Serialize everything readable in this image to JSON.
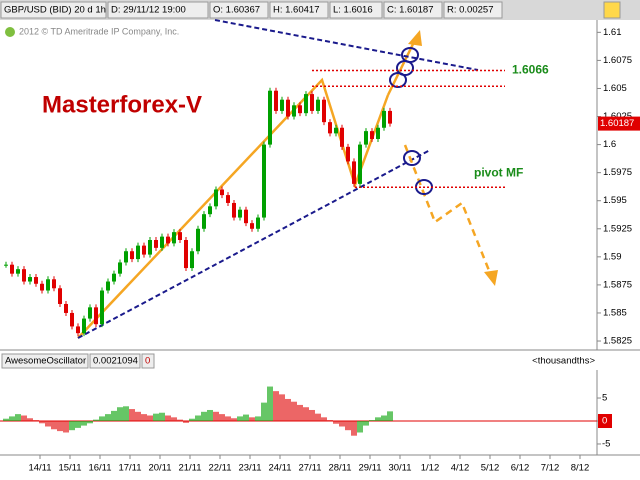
{
  "header": {
    "symbol": "GBP/USD (BID) 20 d 1h",
    "date": "D: 29/11/12 19:00",
    "open": "O: 1.60367",
    "high": "H: 1.60417",
    "low": "L: 1.6016",
    "close": "C: 1.60187",
    "range": "R: 0.00257",
    "copyright": "2012 © TD Ameritrade IP Company, Inc."
  },
  "chart_data": [
    {
      "type": "candlestick",
      "title": "Masterforex-V",
      "values": [
        1.5893,
        1.5885,
        1.5889,
        1.5878,
        1.5882,
        1.5876,
        1.587,
        1.588,
        1.5872,
        1.5858,
        1.585,
        1.5838,
        1.5832,
        1.5845,
        1.5855,
        1.584,
        1.587,
        1.5878,
        1.5885,
        1.5895,
        1.5905,
        1.5898,
        1.591,
        1.5902,
        1.5915,
        1.5908,
        1.5918,
        1.5912,
        1.5922,
        1.5915,
        1.589,
        1.5905,
        1.5925,
        1.5938,
        1.5945,
        1.596,
        1.5955,
        1.5948,
        1.5935,
        1.5942,
        1.593,
        1.5925,
        1.5935,
        1.6,
        1.6048,
        1.603,
        1.604,
        1.6025,
        1.6035,
        1.6028,
        1.6045,
        1.603,
        1.604,
        1.602,
        1.601,
        1.6015,
        1.5998,
        1.5985,
        1.5965,
        1.6,
        1.6012,
        1.6005,
        1.6015,
        1.603,
        1.60187
      ],
      "up_color": "#00a000",
      "down_color": "#e00000",
      "ylim": [
        1.5817,
        1.6111
      ],
      "yticks": [
        1.5825,
        1.585,
        1.5875,
        1.59,
        1.5925,
        1.595,
        1.5975,
        1.6,
        1.6025,
        1.605,
        1.6075,
        1.61
      ],
      "last_price": 1.60187,
      "levels": [
        1.6066,
        1.6052,
        1.5962
      ],
      "pivot_label": "pivot MF"
    },
    {
      "type": "bar",
      "name": "AwesomeOscillator",
      "last_value": 0.0021094,
      "param": 0,
      "units": "<thousandths>",
      "values": [
        0.5,
        1.0,
        1.5,
        1.2,
        0.6,
        0.2,
        -0.5,
        -1.2,
        -1.8,
        -2.2,
        -2.5,
        -2.0,
        -1.5,
        -1.0,
        -0.5,
        0.3,
        1.0,
        1.5,
        2.2,
        3.0,
        3.2,
        2.6,
        2.0,
        1.5,
        1.2,
        1.6,
        1.8,
        1.2,
        0.8,
        0.3,
        -0.4,
        0.5,
        1.2,
        2.0,
        2.4,
        2.0,
        1.5,
        1.0,
        0.6,
        1.0,
        1.4,
        0.8,
        1.0,
        4.0,
        7.5,
        6.5,
        5.8,
        4.8,
        4.2,
        3.5,
        3.0,
        2.4,
        1.6,
        0.8,
        0.2,
        -0.6,
        -1.2,
        -2.0,
        -3.2,
        -2.5,
        -1.0,
        0.2,
        0.8,
        1.2,
        2.1
      ],
      "up_color": "#00a000",
      "down_color": "#e00000",
      "ylim": [
        -7.4,
        11.1
      ],
      "yticks": [
        -5,
        0,
        5
      ],
      "date_labels": [
        "14/11",
        "15/11",
        "16/11",
        "17/11",
        "20/11",
        "21/11",
        "22/11",
        "23/11",
        "24/11",
        "27/11",
        "28/11",
        "29/11",
        "30/11",
        "1/12",
        "4/12",
        "5/12",
        "6/12",
        "7/12",
        "8/12"
      ]
    }
  ]
}
